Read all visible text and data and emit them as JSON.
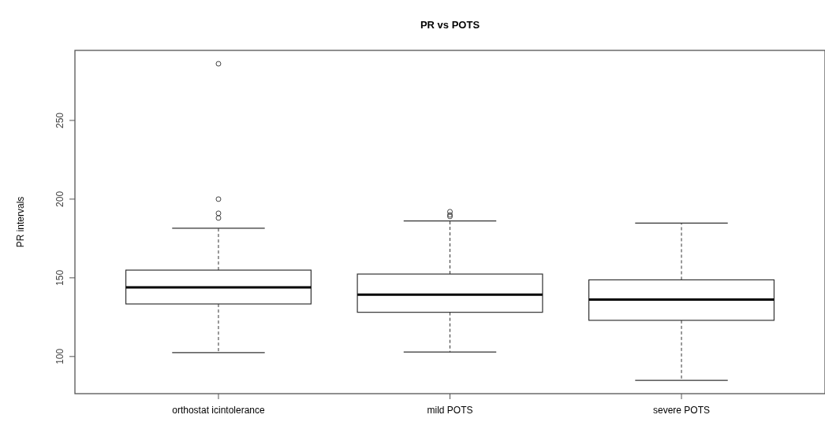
{
  "chart_data": {
    "type": "box",
    "title": "PR vs POTS",
    "ylabel": "PR intervals",
    "categories": [
      "orthostat icintolerance",
      "mild POTS",
      "severe POTS"
    ],
    "boxes": [
      {
        "low": 102.5,
        "q1": 133.4,
        "median": 143.9,
        "q3": 154.9,
        "high": 181.5,
        "outliers": [
          286,
          200,
          191,
          188
        ]
      },
      {
        "low": 102.8,
        "q1": 128.1,
        "median": 139.3,
        "q3": 152.4,
        "high": 186.1,
        "outliers": [
          192,
          190,
          189
        ]
      },
      {
        "low": 84.8,
        "q1": 123,
        "median": 136.2,
        "q3": 148.7,
        "high": 184.8
      }
    ],
    "ylim": [
      76.4,
      294.5
    ],
    "yticks": [
      100,
      150,
      200,
      250
    ],
    "grid": false,
    "color": "#ffffff"
  }
}
